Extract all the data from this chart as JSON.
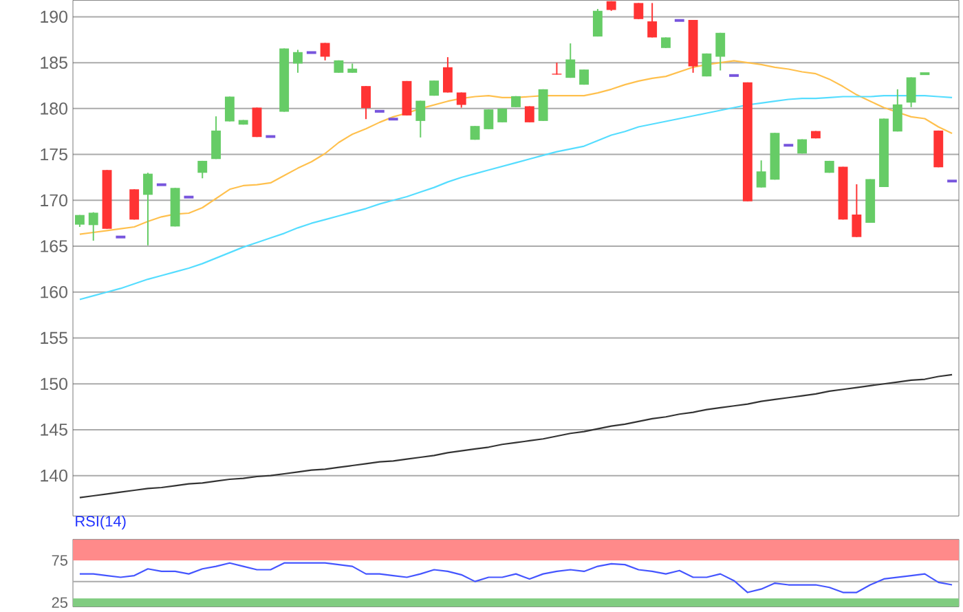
{
  "chart_data": [
    {
      "type": "candlestick",
      "categories": [
        null,
        null,
        null,
        null,
        null,
        null,
        null,
        null,
        null,
        null,
        null,
        null,
        null,
        null,
        null,
        null,
        null,
        null,
        null,
        null,
        null,
        null,
        null,
        null,
        null,
        null,
        null,
        null,
        null,
        null,
        null,
        null,
        null,
        null,
        null,
        null,
        null,
        null,
        null,
        null,
        null,
        null,
        null,
        null,
        null,
        null,
        null,
        null,
        null,
        null,
        null,
        null,
        null,
        null,
        null,
        null,
        null,
        null,
        null,
        null,
        null,
        null,
        null,
        null,
        null
      ],
      "ohlc": [
        [
          167.35,
          168.4,
          167.1,
          168.4
        ],
        [
          167.3,
          168.7,
          165.6,
          168.65
        ],
        [
          173.3,
          173.3,
          166.9,
          166.9
        ],
        [
          166,
          166,
          166,
          166
        ],
        [
          171.2,
          171.2,
          167.9,
          167.9
        ],
        [
          170.6,
          173,
          165.1,
          172.9
        ],
        [
          171.7,
          171.7,
          171.7,
          171.7
        ],
        [
          167.15,
          171.35,
          167.15,
          171.35
        ],
        [
          170.35,
          170.35,
          170.35,
          170.35
        ],
        [
          173,
          174.3,
          172.4,
          174.3
        ],
        [
          174.5,
          179.15,
          174.5,
          177.6
        ],
        [
          178.6,
          181.3,
          178.6,
          181.3
        ],
        [
          178.25,
          178.75,
          178.25,
          178.75
        ],
        [
          180.1,
          180.1,
          176.9,
          176.9
        ],
        [
          176.95,
          176.95,
          176.95,
          176.95
        ],
        [
          179.65,
          186.55,
          179.65,
          186.55
        ],
        [
          184.9,
          186.4,
          183.9,
          186.15
        ],
        [
          186.1,
          186.1,
          186.1,
          186.1
        ],
        [
          187.15,
          187.15,
          185.25,
          185.65
        ],
        [
          183.9,
          185.25,
          183.9,
          185.25
        ],
        [
          183.9,
          184.9,
          183.9,
          184.35
        ],
        [
          182.45,
          182.45,
          178.85,
          180.05
        ],
        [
          179.7,
          179.7,
          179.7,
          179.7
        ],
        [
          178.85,
          178.85,
          178.85,
          178.85
        ],
        [
          183,
          183,
          179.25,
          179.25
        ],
        [
          178.65,
          180.85,
          176.85,
          180.85
        ],
        [
          181.4,
          183.05,
          181.4,
          183.05
        ],
        [
          184.5,
          185.6,
          181.75,
          181.75
        ],
        [
          181.75,
          181.75,
          180.1,
          180.4
        ],
        [
          176.6,
          178.1,
          176.6,
          178.1
        ],
        [
          177.75,
          179.9,
          177.75,
          179.9
        ],
        [
          178.5,
          180,
          178.5,
          180
        ],
        [
          180.15,
          181.35,
          180.15,
          181.35
        ],
        [
          180.25,
          180.25,
          178.5,
          178.5
        ],
        [
          178.65,
          182.1,
          178.65,
          182.1
        ],
        [
          183.8,
          185,
          183.7,
          183.7
        ],
        [
          183.35,
          187.1,
          183.35,
          185.35
        ],
        [
          182.6,
          184.25,
          182.6,
          184.25
        ],
        [
          187.85,
          190.85,
          187.85,
          190.65
        ],
        [
          191.7,
          191.7,
          190.65,
          190.75
        ],
        null,
        [
          191.5,
          191.5,
          189.75,
          189.75
        ],
        [
          189.5,
          191.5,
          187.75,
          187.75
        ],
        [
          186.6,
          187.75,
          186.6,
          187.75
        ],
        [
          189.6,
          189.6,
          189.6,
          189.6
        ],
        [
          189.65,
          189.65,
          183.9,
          184.6
        ],
        [
          183.5,
          186,
          183.5,
          186
        ],
        [
          185.65,
          188.25,
          184.15,
          188.25
        ],
        [
          183.6,
          183.6,
          183.6,
          183.6
        ],
        [
          182.85,
          182.85,
          169.9,
          169.9
        ],
        [
          171.4,
          174.35,
          171.4,
          173.15
        ],
        [
          172.25,
          177.35,
          172.25,
          177.35
        ],
        [
          176,
          176,
          176,
          176
        ],
        [
          175.1,
          176.65,
          175.1,
          176.65
        ],
        [
          177.55,
          177.55,
          176.75,
          176.75
        ],
        [
          173,
          174.3,
          173,
          174.3
        ],
        [
          173.65,
          173.65,
          167.9,
          167.9
        ],
        [
          168.45,
          171.75,
          166,
          166
        ],
        [
          167.55,
          172.3,
          167.55,
          172.3
        ],
        [
          171.45,
          178.9,
          171.45,
          178.9
        ],
        [
          177.5,
          182.1,
          177.5,
          180.45
        ],
        [
          180.65,
          183.4,
          180.15,
          183.4
        ],
        [
          183.8,
          183.8,
          183.8,
          183.8
        ],
        [
          177.6,
          177.6,
          173.6,
          173.6
        ],
        [
          172.1,
          172.1,
          172.1,
          172.1
        ]
      ],
      "colors": [
        "#66cc66",
        "#66cc66",
        "#ff3333",
        "#7755dd",
        "#ff3333",
        "#66cc66",
        "#7755dd",
        "#66cc66",
        "#7755dd",
        "#66cc66",
        "#66cc66",
        "#66cc66",
        "#66cc66",
        "#ff3333",
        "#7755dd",
        "#66cc66",
        "#66cc66",
        "#7755dd",
        "#ff3333",
        "#66cc66",
        "#66cc66",
        "#ff3333",
        "#7755dd",
        "#7755dd",
        "#ff3333",
        "#66cc66",
        "#66cc66",
        "#ff3333",
        "#ff3333",
        "#66cc66",
        "#66cc66",
        "#66cc66",
        "#66cc66",
        "#ff3333",
        "#66cc66",
        "#ff3333",
        "#66cc66",
        "#66cc66",
        "#66cc66",
        "#ff3333",
        null,
        "#ff3333",
        "#ff3333",
        "#66cc66",
        "#7755dd",
        "#ff3333",
        "#66cc66",
        "#66cc66",
        "#7755dd",
        "#ff3333",
        "#66cc66",
        "#66cc66",
        "#7755dd",
        "#66cc66",
        "#ff3333",
        "#66cc66",
        "#ff3333",
        "#ff3333",
        "#66cc66",
        "#66cc66",
        "#66cc66",
        "#66cc66",
        "#66cc66",
        "#ff3333",
        "#7755dd"
      ],
      "series": [
        {
          "type": "line",
          "color": "#ffc04d",
          "values": [
            166.3,
            166.5,
            166.7,
            166.9,
            167.1,
            167.7,
            168.2,
            168.5,
            168.6,
            169.2,
            170.2,
            171.2,
            171.6,
            171.7,
            171.9,
            172.7,
            173.5,
            174.2,
            175.1,
            176.3,
            177.2,
            177.8,
            178.5,
            179.1,
            179.5,
            180.0,
            180.4,
            180.8,
            181.1,
            181.3,
            181.4,
            181.2,
            181.2,
            181.3,
            181.4,
            181.4,
            181.4,
            181.4,
            181.7,
            182.1,
            182.6,
            183.0,
            183.3,
            183.5,
            184.0,
            184.5,
            184.8,
            185.0,
            185.2,
            185.0,
            184.8,
            184.5,
            184.3,
            184.0,
            183.8,
            183.2,
            182.4,
            181.5,
            180.8,
            180.1,
            179.6,
            179.1,
            178.9,
            178.0,
            177.3
          ]
        },
        {
          "type": "line",
          "color": "#55ddff",
          "values": [
            159.2,
            159.6,
            160.0,
            160.4,
            160.9,
            161.4,
            161.8,
            162.2,
            162.6,
            163.1,
            163.7,
            164.3,
            164.9,
            165.4,
            165.9,
            166.4,
            167.0,
            167.5,
            167.9,
            168.3,
            168.7,
            169.1,
            169.6,
            170.0,
            170.4,
            170.9,
            171.4,
            172.0,
            172.5,
            172.9,
            173.3,
            173.7,
            174.1,
            174.5,
            174.9,
            175.3,
            175.6,
            175.9,
            176.5,
            177.1,
            177.5,
            178.0,
            178.3,
            178.6,
            178.9,
            179.2,
            179.5,
            179.8,
            180.1,
            180.4,
            180.6,
            180.8,
            181.0,
            181.1,
            181.1,
            181.2,
            181.3,
            181.3,
            181.3,
            181.4,
            181.4,
            181.4,
            181.4,
            181.3,
            181.2
          ]
        },
        {
          "type": "line",
          "color": "#333333",
          "values": [
            137.6,
            137.8,
            138.0,
            138.2,
            138.4,
            138.6,
            138.7,
            138.9,
            139.1,
            139.2,
            139.4,
            139.6,
            139.7,
            139.9,
            140.0,
            140.2,
            140.4,
            140.6,
            140.7,
            140.9,
            141.1,
            141.3,
            141.5,
            141.6,
            141.8,
            142.0,
            142.2,
            142.5,
            142.7,
            142.9,
            143.1,
            143.4,
            143.6,
            143.8,
            144.0,
            144.3,
            144.6,
            144.8,
            145.1,
            145.4,
            145.6,
            145.9,
            146.2,
            146.4,
            146.7,
            146.9,
            147.2,
            147.4,
            147.6,
            147.8,
            148.1,
            148.3,
            148.5,
            148.7,
            148.9,
            149.2,
            149.4,
            149.6,
            149.8,
            150.0,
            150.2,
            150.4,
            150.5,
            150.8,
            151.0
          ]
        }
      ],
      "ylim": [
        135.6,
        191.8
      ],
      "yticks": [
        140,
        145,
        150,
        155,
        160,
        165,
        170,
        175,
        180,
        185,
        190
      ],
      "grid": "y",
      "tick_labels": "y"
    },
    {
      "type": "line",
      "title": "RSI(14)",
      "categories": [
        null,
        null,
        null,
        null,
        null,
        null,
        null,
        null,
        null,
        null,
        null,
        null,
        null,
        null,
        null,
        null,
        null,
        null,
        null,
        null,
        null,
        null,
        null,
        null,
        null,
        null,
        null,
        null,
        null,
        null,
        null,
        null,
        null,
        null,
        null,
        null,
        null,
        null,
        null,
        null,
        null,
        null,
        null,
        null,
        null,
        null,
        null,
        null,
        null,
        null,
        null,
        null,
        null,
        null,
        null,
        null,
        null,
        null,
        null,
        null,
        null,
        null,
        null,
        null,
        null
      ],
      "series": [
        {
          "color": "#4455ff",
          "values": [
            59,
            59,
            57,
            55,
            57,
            65,
            62,
            62,
            59,
            65,
            68,
            72,
            68,
            64,
            64,
            72,
            72,
            72,
            72,
            70,
            68,
            59,
            59,
            57,
            55,
            59,
            64,
            62,
            58,
            50,
            55,
            55,
            59,
            53,
            59,
            62,
            64,
            62,
            68,
            71,
            70,
            64,
            62,
            59,
            63,
            55,
            55,
            59,
            51,
            37,
            41,
            48,
            46,
            46,
            46,
            43,
            37,
            37,
            46,
            53,
            55,
            57,
            59,
            49,
            46
          ]
        }
      ],
      "ylim": [
        20,
        100
      ],
      "yticks": [
        25,
        75
      ],
      "bands": [
        {
          "axis": "y",
          "from": 75,
          "to": 100,
          "color": "#ff8a8a"
        },
        {
          "axis": "y",
          "from": 20,
          "to": 30,
          "color": "#80cc80"
        }
      ],
      "ref_lines": [
        {
          "axis": "y",
          "value": 50,
          "color": "#aaaaaa"
        }
      ],
      "tick_labels": "y"
    }
  ]
}
